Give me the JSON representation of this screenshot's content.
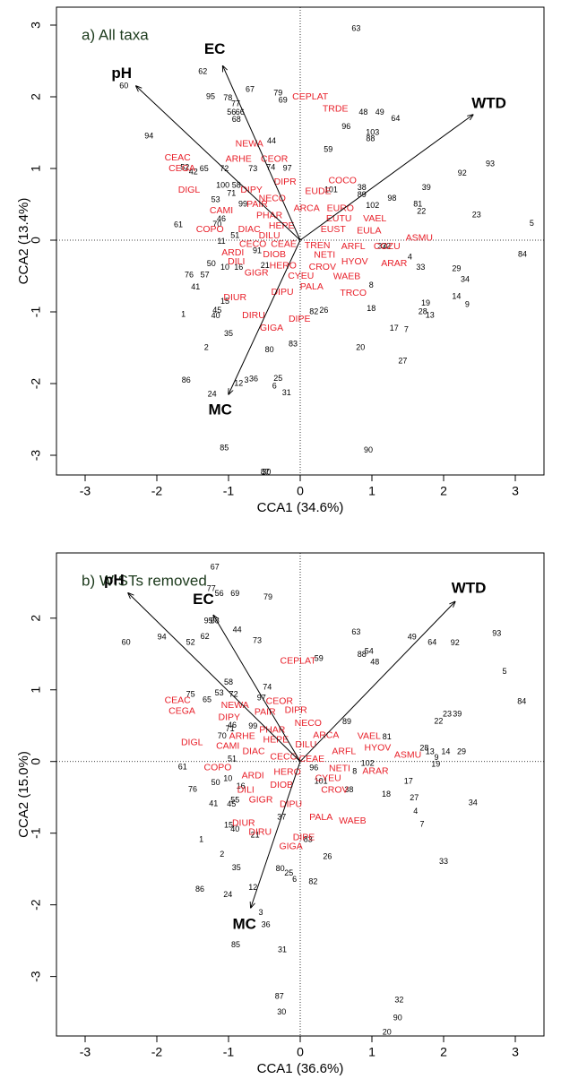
{
  "chart_data": [
    {
      "type": "scatter",
      "title": "a) All taxa",
      "xlabel": "CCA1 (34.6%)",
      "ylabel": "CCA2 (13.4%)",
      "xlim": [
        -3.4,
        3.4
      ],
      "ylim": [
        -3.275,
        3.25
      ],
      "xticks": [
        -3,
        -2,
        -1,
        0,
        1,
        2,
        3
      ],
      "yticks": [
        -3,
        -2,
        -1,
        0,
        1,
        2,
        3
      ],
      "sites": {
        "color": "#000000",
        "labels": [
          "63",
          "60",
          "62",
          "95",
          "78",
          "77",
          "67",
          "79",
          "69",
          "56",
          "66",
          "68",
          "48",
          "49",
          "64",
          "96",
          "103",
          "88",
          "94",
          "44",
          "59",
          "93",
          "92",
          "73",
          "74",
          "97",
          "52",
          "65",
          "42",
          "72",
          "100",
          "58",
          "71",
          "53",
          "99",
          "46",
          "70",
          "61",
          "39",
          "38",
          "101",
          "89",
          "102",
          "98",
          "81",
          "22",
          "23",
          "5",
          "84",
          "11",
          "51",
          "91",
          "21",
          "50",
          "10",
          "16",
          "76",
          "57",
          "41",
          "15",
          "45",
          "40",
          "1",
          "35",
          "2",
          "80",
          "83",
          "82",
          "26",
          "18",
          "20",
          "17",
          "7",
          "27",
          "19",
          "28",
          "13",
          "14",
          "9",
          "29",
          "34",
          "33",
          "4",
          "32",
          "37",
          "8",
          "3",
          "36",
          "12",
          "25",
          "6",
          "31",
          "86",
          "24",
          "85",
          "87",
          "30",
          "90"
        ],
        "x": [
          0.78,
          -2.46,
          -1.36,
          -1.25,
          -1.01,
          -0.9,
          -0.7,
          -0.31,
          -0.24,
          -0.96,
          -0.84,
          -0.89,
          0.88,
          1.11,
          1.33,
          0.64,
          1.01,
          0.98,
          -2.11,
          -0.4,
          0.39,
          2.65,
          2.26,
          -0.66,
          -0.41,
          -0.18,
          -1.61,
          -1.34,
          -1.49,
          -1.06,
          -1.08,
          -0.89,
          -0.96,
          -1.18,
          -0.8,
          -1.1,
          -1.16,
          -1.7,
          1.76,
          0.86,
          0.43,
          0.86,
          1.01,
          1.28,
          1.64,
          1.69,
          2.46,
          3.23,
          3.1,
          -1.1,
          -0.91,
          -0.6,
          -0.49,
          -1.24,
          -1.05,
          -0.86,
          -1.55,
          -1.33,
          -1.46,
          -1.05,
          -1.16,
          -1.18,
          -1.63,
          -1.0,
          -1.31,
          -0.43,
          -0.1,
          0.19,
          0.33,
          0.99,
          0.84,
          1.31,
          1.48,
          1.43,
          1.75,
          1.71,
          1.81,
          2.18,
          2.33,
          2.18,
          2.3,
          1.68,
          1.53,
          1.2,
          1.14,
          0.99,
          -0.75,
          -0.65,
          -0.86,
          -0.31,
          -0.36,
          -0.19,
          -1.59,
          -1.23,
          -1.06,
          -0.49,
          -0.47,
          0.95
        ],
        "y": [
          2.95,
          2.15,
          2.35,
          2.0,
          1.98,
          1.9,
          2.1,
          2.05,
          1.95,
          1.78,
          1.78,
          1.68,
          1.78,
          1.78,
          1.69,
          1.58,
          1.5,
          1.41,
          1.45,
          1.38,
          1.26,
          1.06,
          0.93,
          0.99,
          1.01,
          1.0,
          1.01,
          0.99,
          0.95,
          0.99,
          0.76,
          0.76,
          0.65,
          0.56,
          0.5,
          0.29,
          0.22,
          0.21,
          0.73,
          0.73,
          0.7,
          0.63,
          0.48,
          0.58,
          0.5,
          0.4,
          0.35,
          0.23,
          -0.2,
          -0.02,
          0.06,
          -0.15,
          -0.36,
          -0.33,
          -0.38,
          -0.38,
          -0.49,
          -0.49,
          -0.66,
          -0.86,
          -0.98,
          -1.06,
          -1.04,
          -1.31,
          -1.5,
          -1.53,
          -1.45,
          -1.0,
          -0.98,
          -0.96,
          -1.5,
          -1.23,
          -1.25,
          -1.69,
          -0.88,
          -1.0,
          -1.05,
          -0.79,
          -0.9,
          -0.4,
          -0.55,
          -0.38,
          -0.24,
          -0.09,
          -0.09,
          -0.63,
          -1.96,
          -1.94,
          -2.0,
          -1.93,
          -2.04,
          -2.13,
          -1.96,
          -2.15,
          -2.9,
          -3.24,
          -3.24,
          -2.93
        ]
      },
      "species": {
        "color": "#e8202a",
        "labels": [
          "CEPLAT",
          "TRDE",
          "NEWA",
          "ARHE",
          "CEOR",
          "CEAC",
          "CEGA",
          "DIPR",
          "DIGL",
          "DIPY",
          "COCO",
          "EUDE",
          "NECO",
          "PAIR",
          "CAMI",
          "ARCA",
          "EURO",
          "PHAR",
          "EUTU",
          "VAEL",
          "HEPE",
          "EUST",
          "EULA",
          "COPO",
          "DIAC",
          "DILU",
          "ASMU",
          "CECO",
          "CEAE",
          "TREN",
          "ARFL",
          "COZU",
          "ARDI",
          "DIOB",
          "NETI",
          "HYOV",
          "ARAR",
          "DILI",
          "HERO",
          "CROV",
          "GIGR",
          "CYEU",
          "WAEB",
          "PALA",
          "TRCO",
          "DIPU",
          "DIUR",
          "DIRU",
          "DIPE",
          "GIGA"
        ],
        "x": [
          0.14,
          0.49,
          -0.71,
          -0.86,
          -0.36,
          -1.71,
          -1.65,
          -0.21,
          -1.55,
          -0.68,
          0.59,
          0.25,
          -0.39,
          -0.6,
          -1.1,
          0.09,
          0.56,
          -0.43,
          0.54,
          1.04,
          -0.26,
          0.46,
          0.96,
          -1.26,
          -0.71,
          -0.43,
          1.66,
          -0.66,
          -0.23,
          0.24,
          0.74,
          1.21,
          -0.94,
          -0.36,
          0.34,
          0.76,
          1.31,
          -0.89,
          -0.24,
          0.31,
          -0.61,
          0.01,
          0.65,
          0.16,
          0.74,
          -0.25,
          -0.91,
          -0.65,
          -0.01,
          -0.4
        ],
        "y": [
          2.0,
          1.83,
          1.34,
          1.13,
          1.13,
          1.15,
          1.0,
          0.81,
          0.7,
          0.7,
          0.83,
          0.68,
          0.58,
          0.5,
          0.41,
          0.44,
          0.44,
          0.34,
          0.3,
          0.3,
          0.2,
          0.15,
          0.13,
          0.15,
          0.15,
          0.06,
          0.03,
          -0.06,
          -0.06,
          -0.08,
          -0.09,
          -0.09,
          -0.18,
          -0.2,
          -0.21,
          -0.3,
          -0.33,
          -0.3,
          -0.36,
          -0.38,
          -0.46,
          -0.5,
          -0.51,
          -0.65,
          -0.74,
          -0.73,
          -0.8,
          -1.05,
          -1.1,
          -1.23
        ]
      },
      "arrows": {
        "color": "#000000",
        "labels": [
          "pH",
          "EC",
          "WTD",
          "MC"
        ],
        "x": [
          -2.29,
          -1.08,
          2.41,
          -1.0
        ],
        "y": [
          2.15,
          2.43,
          1.75,
          -2.15
        ]
      }
    },
    {
      "type": "scatter",
      "title": "b) WISTs removed",
      "xlabel": "CCA1 (36.6%)",
      "ylabel": "CCA2 (15.0%)",
      "xlim": [
        -3.4,
        3.4
      ],
      "ylim": [
        -3.83,
        2.91
      ],
      "xticks": [
        -3,
        -2,
        -1,
        0,
        1,
        2,
        3
      ],
      "yticks": [
        -3,
        -2,
        -1,
        0,
        1,
        2
      ],
      "sites": {
        "color": "#000000",
        "labels": [
          "67",
          "77",
          "56",
          "69",
          "79",
          "60",
          "94",
          "52",
          "62",
          "95",
          "68",
          "44",
          "73",
          "63",
          "88",
          "54",
          "48",
          "49",
          "64",
          "92",
          "93",
          "5",
          "84",
          "23",
          "39",
          "22",
          "29",
          "14",
          "13",
          "28",
          "9",
          "19",
          "81",
          "89",
          "58",
          "53",
          "72",
          "74",
          "97",
          "65",
          "75",
          "71",
          "46",
          "99",
          "70",
          "51",
          "61",
          "10",
          "50",
          "76",
          "16",
          "41",
          "45",
          "55",
          "15",
          "40",
          "96",
          "102",
          "8",
          "101",
          "38",
          "37",
          "17",
          "18",
          "27",
          "4",
          "7",
          "34",
          "33",
          "83",
          "26",
          "1",
          "2",
          "35",
          "80",
          "25",
          "6",
          "82",
          "12",
          "86",
          "24",
          "3",
          "36",
          "85",
          "31",
          "32",
          "90",
          "20",
          "87",
          "30",
          "21",
          "59"
        ],
        "x": [
          -1.19,
          -1.24,
          -1.13,
          -0.91,
          -0.45,
          -2.43,
          -1.93,
          -1.53,
          -1.33,
          -1.28,
          -1.19,
          -0.88,
          -0.6,
          0.78,
          0.86,
          0.96,
          1.04,
          1.56,
          1.84,
          2.16,
          2.74,
          2.85,
          3.09,
          2.05,
          2.19,
          1.93,
          2.25,
          2.03,
          1.81,
          1.73,
          1.9,
          1.89,
          1.21,
          0.65,
          -1.0,
          -1.13,
          -0.93,
          -0.46,
          -0.54,
          -1.3,
          -1.53,
          -0.98,
          -0.95,
          -0.66,
          -1.09,
          -0.95,
          -1.64,
          -1.01,
          -1.18,
          -1.5,
          -0.83,
          -1.21,
          -0.96,
          -0.91,
          -1.0,
          -0.91,
          0.19,
          0.94,
          0.76,
          0.29,
          0.68,
          -0.26,
          1.51,
          1.2,
          1.59,
          1.61,
          1.7,
          2.41,
          2.0,
          0.11,
          0.38,
          -1.38,
          -1.09,
          -0.89,
          -0.28,
          -0.16,
          -0.08,
          0.18,
          -0.66,
          -1.4,
          -1.01,
          -0.55,
          -0.48,
          -0.9,
          -0.25,
          1.38,
          1.36,
          1.21,
          -0.29,
          -0.26,
          -0.63,
          0.26
        ],
        "y": [
          2.71,
          2.41,
          2.34,
          2.34,
          2.29,
          1.66,
          1.73,
          1.66,
          1.74,
          1.96,
          1.96,
          1.83,
          1.68,
          1.8,
          1.49,
          1.53,
          1.38,
          1.73,
          1.66,
          1.65,
          1.78,
          1.25,
          0.83,
          0.66,
          0.66,
          0.56,
          0.13,
          0.13,
          0.13,
          0.18,
          0.05,
          -0.04,
          0.34,
          0.55,
          1.1,
          0.95,
          0.93,
          1.03,
          0.88,
          0.86,
          0.93,
          0.45,
          0.5,
          0.49,
          0.35,
          0.03,
          -0.08,
          -0.24,
          -0.3,
          -0.39,
          -0.35,
          -0.59,
          -0.6,
          -0.54,
          -0.89,
          -0.95,
          -0.09,
          -0.03,
          -0.14,
          -0.28,
          -0.4,
          -0.78,
          -0.28,
          -0.46,
          -0.51,
          -0.7,
          -0.88,
          -0.58,
          -1.4,
          -1.09,
          -1.33,
          -1.09,
          -1.3,
          -1.49,
          -1.5,
          -1.56,
          -1.65,
          -1.68,
          -1.76,
          -1.79,
          -1.86,
          -2.11,
          -2.28,
          -2.56,
          -2.63,
          -3.33,
          -3.58,
          -3.78,
          -3.28,
          -3.5,
          -1.03,
          1.43
        ]
      },
      "species": {
        "color": "#e8202a",
        "labels": [
          "CEPLAT",
          "CEOR",
          "DIPR",
          "NEWA",
          "CEAC",
          "CEGA",
          "DIPY",
          "PAIR",
          "NECO",
          "PHAR",
          "ARHE",
          "HEPE",
          "ARCA",
          "DILU",
          "DIGL",
          "CAMI",
          "DIAC",
          "VAEL",
          "HYOV",
          "ASMU",
          "ARFL",
          "ARAR",
          "NETI",
          "CECO",
          "CEAE",
          "COPO",
          "ARDI",
          "HERO",
          "CYEU",
          "DIOB",
          "CROV",
          "DILI",
          "GIGR",
          "DIPU",
          "PALA",
          "WAEB",
          "DIUR",
          "DIRU",
          "DIPE",
          "GIGA"
        ],
        "x": [
          -0.03,
          -0.29,
          -0.06,
          -0.91,
          -1.71,
          -1.65,
          -0.99,
          -0.49,
          0.11,
          -0.39,
          -0.81,
          -0.34,
          0.36,
          0.08,
          -1.51,
          -1.01,
          -0.65,
          0.96,
          1.08,
          1.5,
          0.61,
          1.05,
          0.55,
          -0.23,
          0.16,
          -1.15,
          -0.66,
          -0.18,
          0.39,
          -0.26,
          0.48,
          -0.76,
          -0.55,
          -0.13,
          0.29,
          0.73,
          -0.79,
          -0.56,
          0.05,
          -0.13
        ],
        "y": [
          1.4,
          0.84,
          0.71,
          0.78,
          0.85,
          0.7,
          0.61,
          0.69,
          0.53,
          0.44,
          0.35,
          0.3,
          0.36,
          0.23,
          0.26,
          0.21,
          0.14,
          0.35,
          0.19,
          0.09,
          0.14,
          -0.14,
          -0.1,
          0.06,
          0.03,
          -0.09,
          -0.2,
          -0.15,
          -0.24,
          -0.33,
          -0.4,
          -0.4,
          -0.54,
          -0.6,
          -0.78,
          -0.83,
          -0.86,
          -0.99,
          -1.06,
          -1.19
        ]
      },
      "arrows": {
        "color": "#000000",
        "labels": [
          "pH",
          "EC",
          "WTD",
          "MC"
        ],
        "x": [
          -2.4,
          -1.21,
          2.16,
          -0.69
        ],
        "y": [
          2.35,
          2.04,
          2.23,
          -2.04
        ]
      }
    }
  ]
}
